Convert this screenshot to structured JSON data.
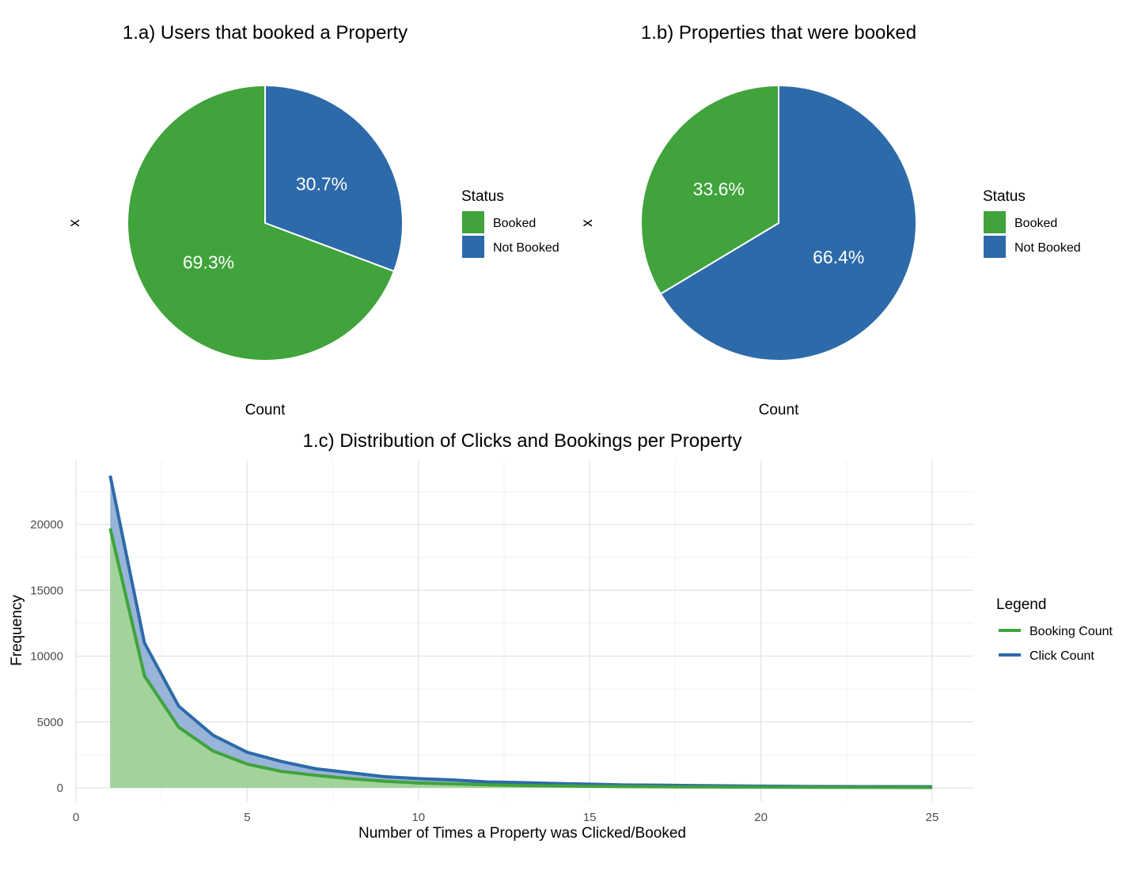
{
  "chart_data": [
    {
      "type": "pie",
      "title": "1.a) Users that booked a Property",
      "xlabel": "Count",
      "ylabel": "x",
      "legend": {
        "title": "Status",
        "position": "right"
      },
      "slices": [
        {
          "name": "Not Booked",
          "value": 30.7,
          "label": "30.7%",
          "color": "#2d6aa9"
        },
        {
          "name": "Booked",
          "value": 69.3,
          "label": "69.3%",
          "color": "#40a33b"
        }
      ],
      "legend_entries": [
        {
          "name": "Booked",
          "color": "#40a33b"
        },
        {
          "name": "Not Booked",
          "color": "#2d6aa9"
        }
      ]
    },
    {
      "type": "pie",
      "title": "1.b) Properties that were booked",
      "xlabel": "Count",
      "ylabel": "x",
      "legend": {
        "title": "Status",
        "position": "right"
      },
      "slices": [
        {
          "name": "Not Booked",
          "value": 66.4,
          "label": "66.4%",
          "color": "#2d6aa9"
        },
        {
          "name": "Booked",
          "value": 33.6,
          "label": "33.6%",
          "color": "#40a33b"
        }
      ],
      "legend_entries": [
        {
          "name": "Booked",
          "color": "#40a33b"
        },
        {
          "name": "Not Booked",
          "color": "#2d6aa9"
        }
      ]
    },
    {
      "type": "area",
      "title": "1.c) Distribution of Clicks and Bookings per Property",
      "xlabel": "Number of Times a Property was Clicked/Booked",
      "ylabel": "Frequency",
      "xlim": [
        0,
        26
      ],
      "ylim": [
        0,
        24000
      ],
      "x_ticks": [
        0,
        5,
        10,
        15,
        20,
        25
      ],
      "y_ticks": [
        0,
        5000,
        10000,
        15000,
        20000
      ],
      "grid": true,
      "legend": {
        "title": "Legend",
        "position": "right"
      },
      "x": [
        1,
        2,
        3,
        4,
        5,
        6,
        7,
        8,
        9,
        10,
        11,
        12,
        13,
        14,
        15,
        16,
        17,
        18,
        19,
        20,
        21,
        22,
        23,
        24,
        25
      ],
      "series": [
        {
          "name": "Click Count",
          "color": "#2d6aa9",
          "fill": "#98b4d8",
          "values": [
            23700,
            11000,
            6200,
            4000,
            2700,
            2000,
            1450,
            1150,
            850,
            700,
            600,
            450,
            400,
            330,
            280,
            220,
            200,
            170,
            150,
            130,
            110,
            100,
            90,
            90,
            80
          ]
        },
        {
          "name": "Booking Count",
          "color": "#40a33b",
          "fill": "#a1d39a",
          "values": [
            19700,
            8500,
            4600,
            2800,
            1800,
            1250,
            950,
            700,
            500,
            370,
            300,
            230,
            180,
            150,
            120,
            100,
            80,
            70,
            60,
            50,
            45,
            40,
            35,
            30,
            25
          ]
        }
      ],
      "legend_entries": [
        {
          "name": "Booking Count",
          "color": "#40a33b"
        },
        {
          "name": "Click Count",
          "color": "#2d6aa9"
        }
      ]
    }
  ]
}
